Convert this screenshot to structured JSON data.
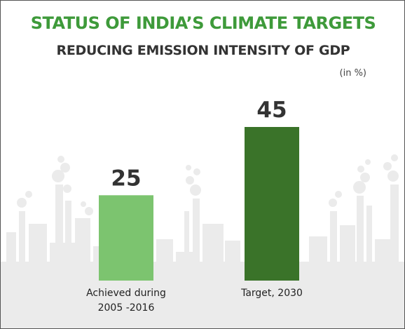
{
  "title": "STATUS OF INDIA’S CLIMATE TARGETS",
  "subtitle": "REDUCING EMISSION INTENSITY OF GDP",
  "unit_label": "(in %)",
  "colors": {
    "title": "#3e9a3a",
    "subtitle": "#333333",
    "skyline": "#ebebeb",
    "bar_achieved": "#7cc46f",
    "bar_target": "#3a7329",
    "value_label": "#333333"
  },
  "chart_data": {
    "type": "bar",
    "title": "STATUS OF INDIA’S CLIMATE TARGETS",
    "subtitle": "REDUCING EMISSION INTENSITY OF GDP",
    "ylabel": "",
    "unit": "(in %)",
    "categories": [
      "Achieved during 2005 -2016",
      "Target, 2030"
    ],
    "category_lines": [
      [
        "Achieved during",
        "2005 -2016"
      ],
      [
        "Target, 2030"
      ]
    ],
    "values": [
      25,
      45
    ],
    "data_labels": [
      "25",
      "45"
    ],
    "bar_colors": [
      "#7cc46f",
      "#3a7329"
    ],
    "ylim": [
      0,
      45
    ],
    "grid": false,
    "legend": "none"
  }
}
